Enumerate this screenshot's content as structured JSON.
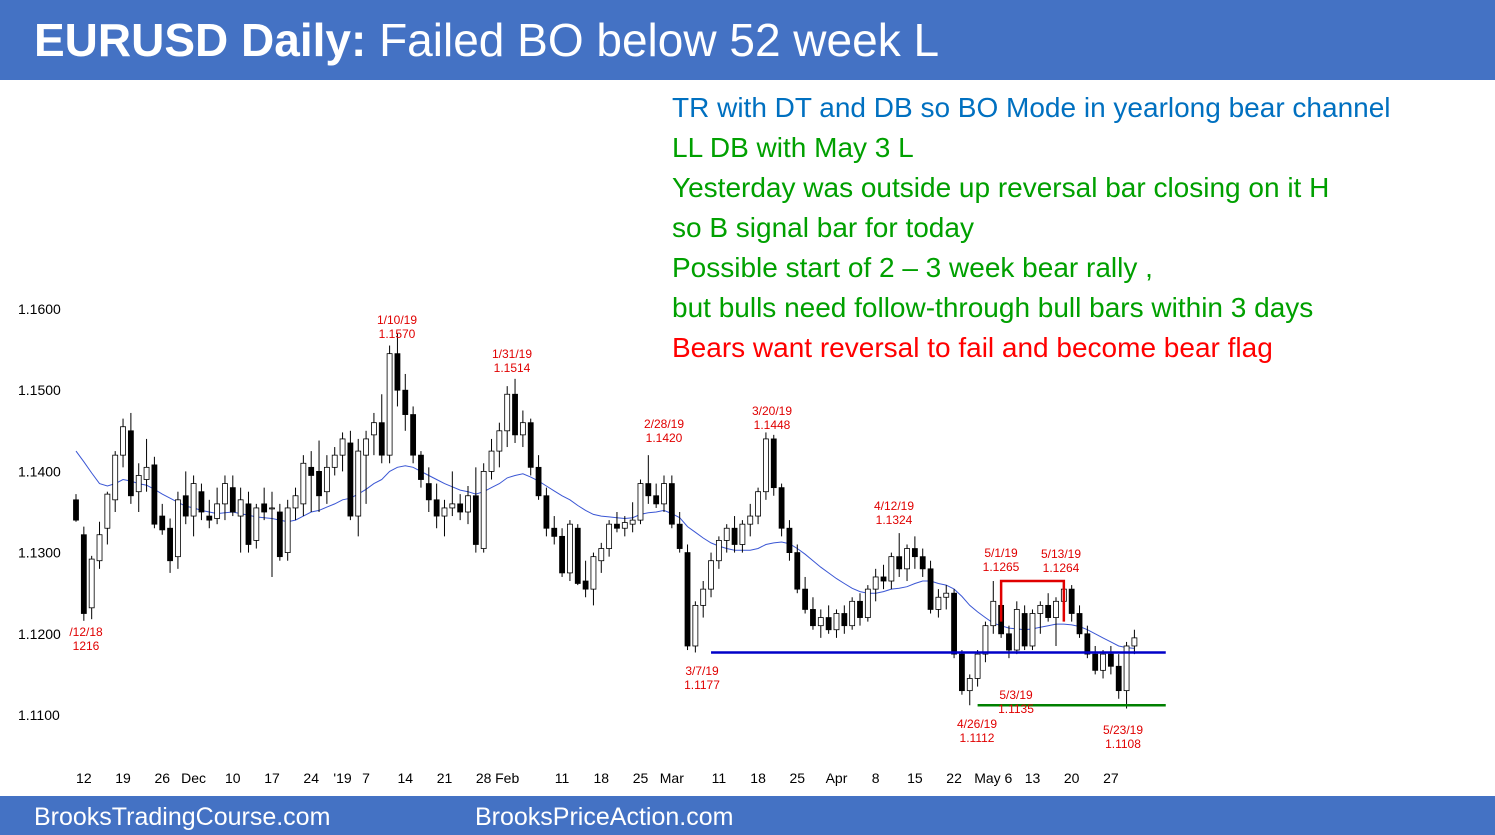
{
  "header": {
    "title_bold": "EURUSD Daily:",
    "title_rest": " Failed BO below 52 week L"
  },
  "footer": {
    "link_left": "BrooksTradingCourse.com",
    "link_right": "BrooksPriceAction.com"
  },
  "notes": [
    {
      "text": "TR with DT and DB so BO Mode in yearlong bear channel",
      "color": "#0070c0"
    },
    {
      "text": "LL DB with May 3 L",
      "color": "#00a000"
    },
    {
      "text": "Yesterday was outside up reversal bar closing on it H",
      "color": "#00a000"
    },
    {
      "text": "so B signal bar for today",
      "color": "#00a000"
    },
    {
      "text": "Possible start of 2 – 3 week bear rally ,",
      "color": "#00a000"
    },
    {
      "text": "but bulls need follow-through bull bars within 3 days",
      "color": "#00a000"
    },
    {
      "text": "Bears want reversal to fail and become bear flag",
      "color": "#ff0000"
    }
  ],
  "colors": {
    "header": "#4472c4",
    "bull": "#ffffff",
    "bear": "#000000",
    "ma": "#3a56d4",
    "support": "#0000c8",
    "low_line": "#008000",
    "resistance": "#e00000",
    "annotation": "#e00000"
  },
  "chart_data": {
    "type": "candlestick",
    "instrument": "EURUSD",
    "timeframe": "Daily",
    "ylim": [
      1.1055,
      1.1625
    ],
    "y_ticks": [
      "1.1600",
      "1.1500",
      "1.1400",
      "1.1300",
      "1.1200",
      "1.1100"
    ],
    "x_ticks": [
      {
        "i": 1,
        "label": "12"
      },
      {
        "i": 6,
        "label": "19"
      },
      {
        "i": 11,
        "label": "26"
      },
      {
        "i": 15,
        "label": "Dec"
      },
      {
        "i": 20,
        "label": "10"
      },
      {
        "i": 25,
        "label": "17"
      },
      {
        "i": 30,
        "label": "24"
      },
      {
        "i": 34,
        "label": "'19"
      },
      {
        "i": 37,
        "label": "7"
      },
      {
        "i": 42,
        "label": "14"
      },
      {
        "i": 47,
        "label": "21"
      },
      {
        "i": 52,
        "label": "28"
      },
      {
        "i": 55,
        "label": "Feb"
      },
      {
        "i": 62,
        "label": "11"
      },
      {
        "i": 67,
        "label": "18"
      },
      {
        "i": 72,
        "label": "25"
      },
      {
        "i": 76,
        "label": "Mar"
      },
      {
        "i": 82,
        "label": "11"
      },
      {
        "i": 87,
        "label": "18"
      },
      {
        "i": 92,
        "label": "25"
      },
      {
        "i": 97,
        "label": "Apr"
      },
      {
        "i": 102,
        "label": "8"
      },
      {
        "i": 107,
        "label": "15"
      },
      {
        "i": 112,
        "label": "22"
      },
      {
        "i": 117,
        "label": "May 6"
      },
      {
        "i": 122,
        "label": "13"
      },
      {
        "i": 127,
        "label": "20"
      },
      {
        "i": 132,
        "label": "27"
      }
    ],
    "ohlc": [
      [
        1.1365,
        1.1372,
        1.1338,
        1.134
      ],
      [
        1.1322,
        1.1332,
        1.1216,
        1.1225
      ],
      [
        1.1232,
        1.1296,
        1.1218,
        1.1292
      ],
      [
        1.129,
        1.1338,
        1.128,
        1.1322
      ],
      [
        1.133,
        1.1375,
        1.131,
        1.1372
      ],
      [
        1.1365,
        1.1425,
        1.135,
        1.142
      ],
      [
        1.142,
        1.1465,
        1.1405,
        1.1455
      ],
      [
        1.145,
        1.1472,
        1.136,
        1.137
      ],
      [
        1.1375,
        1.141,
        1.135,
        1.1395
      ],
      [
        1.139,
        1.144,
        1.1375,
        1.1405
      ],
      [
        1.1408,
        1.1418,
        1.133,
        1.1335
      ],
      [
        1.1345,
        1.136,
        1.1322,
        1.1328
      ],
      [
        1.133,
        1.1342,
        1.1275,
        1.129
      ],
      [
        1.1295,
        1.1375,
        1.128,
        1.1365
      ],
      [
        1.137,
        1.14,
        1.1335,
        1.1345
      ],
      [
        1.1345,
        1.1395,
        1.132,
        1.1385
      ],
      [
        1.1375,
        1.1385,
        1.134,
        1.135
      ],
      [
        1.1345,
        1.1365,
        1.133,
        1.134
      ],
      [
        1.1342,
        1.138,
        1.1335,
        1.136
      ],
      [
        1.136,
        1.1395,
        1.134,
        1.1385
      ],
      [
        1.138,
        1.1395,
        1.1345,
        1.135
      ],
      [
        1.1345,
        1.138,
        1.13,
        1.1365
      ],
      [
        1.136,
        1.1375,
        1.13,
        1.131
      ],
      [
        1.1315,
        1.136,
        1.1305,
        1.1355
      ],
      [
        1.136,
        1.138,
        1.134,
        1.135
      ],
      [
        1.1355,
        1.1375,
        1.127,
        1.1355
      ],
      [
        1.135,
        1.136,
        1.129,
        1.1295
      ],
      [
        1.13,
        1.1365,
        1.129,
        1.1355
      ],
      [
        1.1355,
        1.138,
        1.134,
        1.137
      ],
      [
        1.136,
        1.142,
        1.1345,
        1.141
      ],
      [
        1.1405,
        1.1425,
        1.135,
        1.1395
      ],
      [
        1.14,
        1.1438,
        1.135,
        1.137
      ],
      [
        1.1375,
        1.142,
        1.136,
        1.1405
      ],
      [
        1.1405,
        1.143,
        1.1395,
        1.142
      ],
      [
        1.142,
        1.1448,
        1.14,
        1.144
      ],
      [
        1.1435,
        1.145,
        1.134,
        1.1345
      ],
      [
        1.1345,
        1.144,
        1.132,
        1.1425
      ],
      [
        1.142,
        1.145,
        1.136,
        1.144
      ],
      [
        1.1445,
        1.1472,
        1.142,
        1.146
      ],
      [
        1.146,
        1.1495,
        1.141,
        1.142
      ],
      [
        1.142,
        1.1555,
        1.141,
        1.1545
      ],
      [
        1.1545,
        1.157,
        1.148,
        1.15
      ],
      [
        1.15,
        1.152,
        1.145,
        1.147
      ],
      [
        1.147,
        1.148,
        1.141,
        1.142
      ],
      [
        1.142,
        1.1425,
        1.138,
        1.139
      ],
      [
        1.1385,
        1.1405,
        1.135,
        1.1365
      ],
      [
        1.1365,
        1.1385,
        1.133,
        1.1345
      ],
      [
        1.1345,
        1.1365,
        1.132,
        1.1355
      ],
      [
        1.1355,
        1.14,
        1.1345,
        1.136
      ],
      [
        1.136,
        1.1372,
        1.134,
        1.135
      ],
      [
        1.135,
        1.1382,
        1.1335,
        1.137
      ],
      [
        1.137,
        1.1405,
        1.13,
        1.131
      ],
      [
        1.1305,
        1.141,
        1.13,
        1.14
      ],
      [
        1.14,
        1.144,
        1.139,
        1.1425
      ],
      [
        1.1425,
        1.146,
        1.1405,
        1.145
      ],
      [
        1.145,
        1.1505,
        1.143,
        1.1495
      ],
      [
        1.1495,
        1.1514,
        1.1435,
        1.1445
      ],
      [
        1.1445,
        1.1475,
        1.143,
        1.146
      ],
      [
        1.146,
        1.1465,
        1.1395,
        1.1405
      ],
      [
        1.1405,
        1.142,
        1.1365,
        1.137
      ],
      [
        1.137,
        1.138,
        1.132,
        1.133
      ],
      [
        1.133,
        1.1345,
        1.131,
        1.132
      ],
      [
        1.132,
        1.133,
        1.127,
        1.1275
      ],
      [
        1.1275,
        1.134,
        1.1265,
        1.1335
      ],
      [
        1.133,
        1.1335,
        1.126,
        1.1262
      ],
      [
        1.1265,
        1.129,
        1.1245,
        1.1255
      ],
      [
        1.1255,
        1.13,
        1.1235,
        1.1295
      ],
      [
        1.129,
        1.1312,
        1.1275,
        1.1305
      ],
      [
        1.1305,
        1.134,
        1.1295,
        1.1335
      ],
      [
        1.1335,
        1.135,
        1.1325,
        1.133
      ],
      [
        1.133,
        1.1345,
        1.132,
        1.1337
      ],
      [
        1.1335,
        1.1362,
        1.1325,
        1.134
      ],
      [
        1.134,
        1.139,
        1.1335,
        1.1385
      ],
      [
        1.1385,
        1.142,
        1.136,
        1.137
      ],
      [
        1.137,
        1.1385,
        1.1355,
        1.136
      ],
      [
        1.136,
        1.1395,
        1.135,
        1.1385
      ],
      [
        1.1385,
        1.1395,
        1.133,
        1.1335
      ],
      [
        1.1335,
        1.135,
        1.13,
        1.1305
      ],
      [
        1.13,
        1.131,
        1.118,
        1.1185
      ],
      [
        1.1185,
        1.124,
        1.1177,
        1.1235
      ],
      [
        1.1235,
        1.1265,
        1.122,
        1.1255
      ],
      [
        1.1255,
        1.13,
        1.1245,
        1.129
      ],
      [
        1.129,
        1.132,
        1.128,
        1.1315
      ],
      [
        1.1315,
        1.1335,
        1.13,
        1.133
      ],
      [
        1.133,
        1.1345,
        1.13,
        1.131
      ],
      [
        1.131,
        1.134,
        1.13,
        1.1335
      ],
      [
        1.1335,
        1.136,
        1.132,
        1.1345
      ],
      [
        1.1345,
        1.138,
        1.1335,
        1.1375
      ],
      [
        1.1375,
        1.1448,
        1.1365,
        1.144
      ],
      [
        1.144,
        1.1445,
        1.137,
        1.138
      ],
      [
        1.138,
        1.1385,
        1.132,
        1.133
      ],
      [
        1.133,
        1.134,
        1.129,
        1.13
      ],
      [
        1.13,
        1.131,
        1.125,
        1.1255
      ],
      [
        1.1255,
        1.127,
        1.1225,
        1.123
      ],
      [
        1.123,
        1.1245,
        1.1205,
        1.121
      ],
      [
        1.121,
        1.123,
        1.1195,
        1.122
      ],
      [
        1.122,
        1.1235,
        1.12,
        1.1205
      ],
      [
        1.1205,
        1.123,
        1.1195,
        1.1225
      ],
      [
        1.1225,
        1.1235,
        1.12,
        1.121
      ],
      [
        1.121,
        1.1245,
        1.1205,
        1.124
      ],
      [
        1.124,
        1.125,
        1.121,
        1.122
      ],
      [
        1.122,
        1.126,
        1.1215,
        1.1255
      ],
      [
        1.1255,
        1.128,
        1.124,
        1.127
      ],
      [
        1.127,
        1.1285,
        1.1255,
        1.1265
      ],
      [
        1.1265,
        1.13,
        1.1255,
        1.1295
      ],
      [
        1.1295,
        1.1324,
        1.127,
        1.128
      ],
      [
        1.128,
        1.131,
        1.1265,
        1.1305
      ],
      [
        1.1305,
        1.132,
        1.128,
        1.1295
      ],
      [
        1.1295,
        1.1305,
        1.127,
        1.128
      ],
      [
        1.128,
        1.129,
        1.1225,
        1.123
      ],
      [
        1.123,
        1.1255,
        1.122,
        1.1245
      ],
      [
        1.1245,
        1.126,
        1.123,
        1.125
      ],
      [
        1.125,
        1.1255,
        1.117,
        1.1175
      ],
      [
        1.1175,
        1.118,
        1.1125,
        1.113
      ],
      [
        1.113,
        1.115,
        1.1112,
        1.1145
      ],
      [
        1.1145,
        1.118,
        1.1135,
        1.1175
      ],
      [
        1.1175,
        1.1215,
        1.1165,
        1.121
      ],
      [
        1.121,
        1.1265,
        1.12,
        1.124
      ],
      [
        1.1235,
        1.1245,
        1.1195,
        1.12
      ],
      [
        1.12,
        1.121,
        1.117,
        1.118
      ],
      [
        1.118,
        1.124,
        1.1175,
        1.123
      ],
      [
        1.1225,
        1.1235,
        1.118,
        1.1185
      ],
      [
        1.1185,
        1.123,
        1.118,
        1.1225
      ],
      [
        1.1225,
        1.124,
        1.12,
        1.1235
      ],
      [
        1.1235,
        1.125,
        1.1215,
        1.122
      ],
      [
        1.122,
        1.1245,
        1.1185,
        1.124
      ],
      [
        1.124,
        1.1264,
        1.123,
        1.1255
      ],
      [
        1.1255,
        1.126,
        1.1215,
        1.1225
      ],
      [
        1.1225,
        1.1235,
        1.1195,
        1.12
      ],
      [
        1.12,
        1.121,
        1.117,
        1.1175
      ],
      [
        1.1175,
        1.1185,
        1.115,
        1.1155
      ],
      [
        1.1155,
        1.118,
        1.1145,
        1.1175
      ],
      [
        1.1175,
        1.1185,
        1.115,
        1.116
      ],
      [
        1.116,
        1.1175,
        1.112,
        1.113
      ],
      [
        1.113,
        1.119,
        1.1108,
        1.1185
      ],
      [
        1.1185,
        1.1205,
        1.1175,
        1.1195
      ]
    ],
    "moving_average": [
      1.1425,
      1.1412,
      1.1398,
      1.1385,
      1.1382,
      1.1385,
      1.139,
      1.1388,
      1.1385,
      1.1383,
      1.1378,
      1.1372,
      1.1367,
      1.1362,
      1.1357,
      1.1355,
      1.1352,
      1.135,
      1.1348,
      1.1349,
      1.135,
      1.1348,
      1.1346,
      1.1344,
      1.1343,
      1.1342,
      1.134,
      1.1338,
      1.134,
      1.1345,
      1.135,
      1.1352,
      1.1356,
      1.136,
      1.1365,
      1.1367,
      1.1372,
      1.1378,
      1.1385,
      1.139,
      1.14,
      1.1405,
      1.1407,
      1.1405,
      1.14,
      1.1395,
      1.139,
      1.1385,
      1.1381,
      1.1377,
      1.1375,
      1.1372,
      1.1375,
      1.138,
      1.1385,
      1.1392,
      1.1395,
      1.1397,
      1.1393,
      1.1388,
      1.1382,
      1.1376,
      1.137,
      1.1365,
      1.1358,
      1.1352,
      1.1347,
      1.1345,
      1.1344,
      1.1343,
      1.1342,
      1.1343,
      1.1347,
      1.1349,
      1.135,
      1.1352,
      1.1348,
      1.1343,
      1.1332,
      1.1325,
      1.1318,
      1.1312,
      1.1308,
      1.1305,
      1.1303,
      1.1303,
      1.1303,
      1.1305,
      1.131,
      1.1312,
      1.1313,
      1.1311,
      1.1305,
      1.1298,
      1.129,
      1.1282,
      1.1275,
      1.1268,
      1.1262,
      1.1256,
      1.1252,
      1.125,
      1.125,
      1.1252,
      1.1255,
      1.1256,
      1.1258,
      1.1262,
      1.1265,
      1.1265,
      1.1262,
      1.126,
      1.1255,
      1.1246,
      1.1235,
      1.1227,
      1.122,
      1.1213,
      1.121,
      1.1207,
      1.1206,
      1.1205,
      1.1206,
      1.1208,
      1.121,
      1.1212,
      1.1212,
      1.1211,
      1.1209,
      1.1205,
      1.12,
      1.1195,
      1.119,
      1.1185,
      1.1183,
      1.1182
    ],
    "levels": [
      {
        "name": "3/7/19 low support",
        "value": 1.1177
      },
      {
        "name": "4/26/19 low",
        "value": 1.1112
      },
      {
        "name": "May highs resistance",
        "value": 1.1265
      }
    ],
    "annotations": [
      {
        "lines": [
          "/12/18",
          "1216"
        ]
      },
      {
        "lines": [
          "1/10/19",
          "1.1570"
        ]
      },
      {
        "lines": [
          "1/31/19",
          "1.1514"
        ]
      },
      {
        "lines": [
          "2/28/19",
          "1.1420"
        ]
      },
      {
        "lines": [
          "3/20/19",
          "1.1448"
        ]
      },
      {
        "lines": [
          "4/12/19",
          "1.1324"
        ]
      },
      {
        "lines": [
          "3/7/19",
          "1.1177"
        ]
      },
      {
        "lines": [
          "5/1/19",
          "1.1265"
        ]
      },
      {
        "lines": [
          "5/13/19",
          "1.1264"
        ]
      },
      {
        "lines": [
          "5/3/19",
          "1.1135"
        ]
      },
      {
        "lines": [
          "4/26/19",
          "1.1112"
        ]
      },
      {
        "lines": [
          "5/23/19",
          "1.1108"
        ]
      }
    ]
  }
}
